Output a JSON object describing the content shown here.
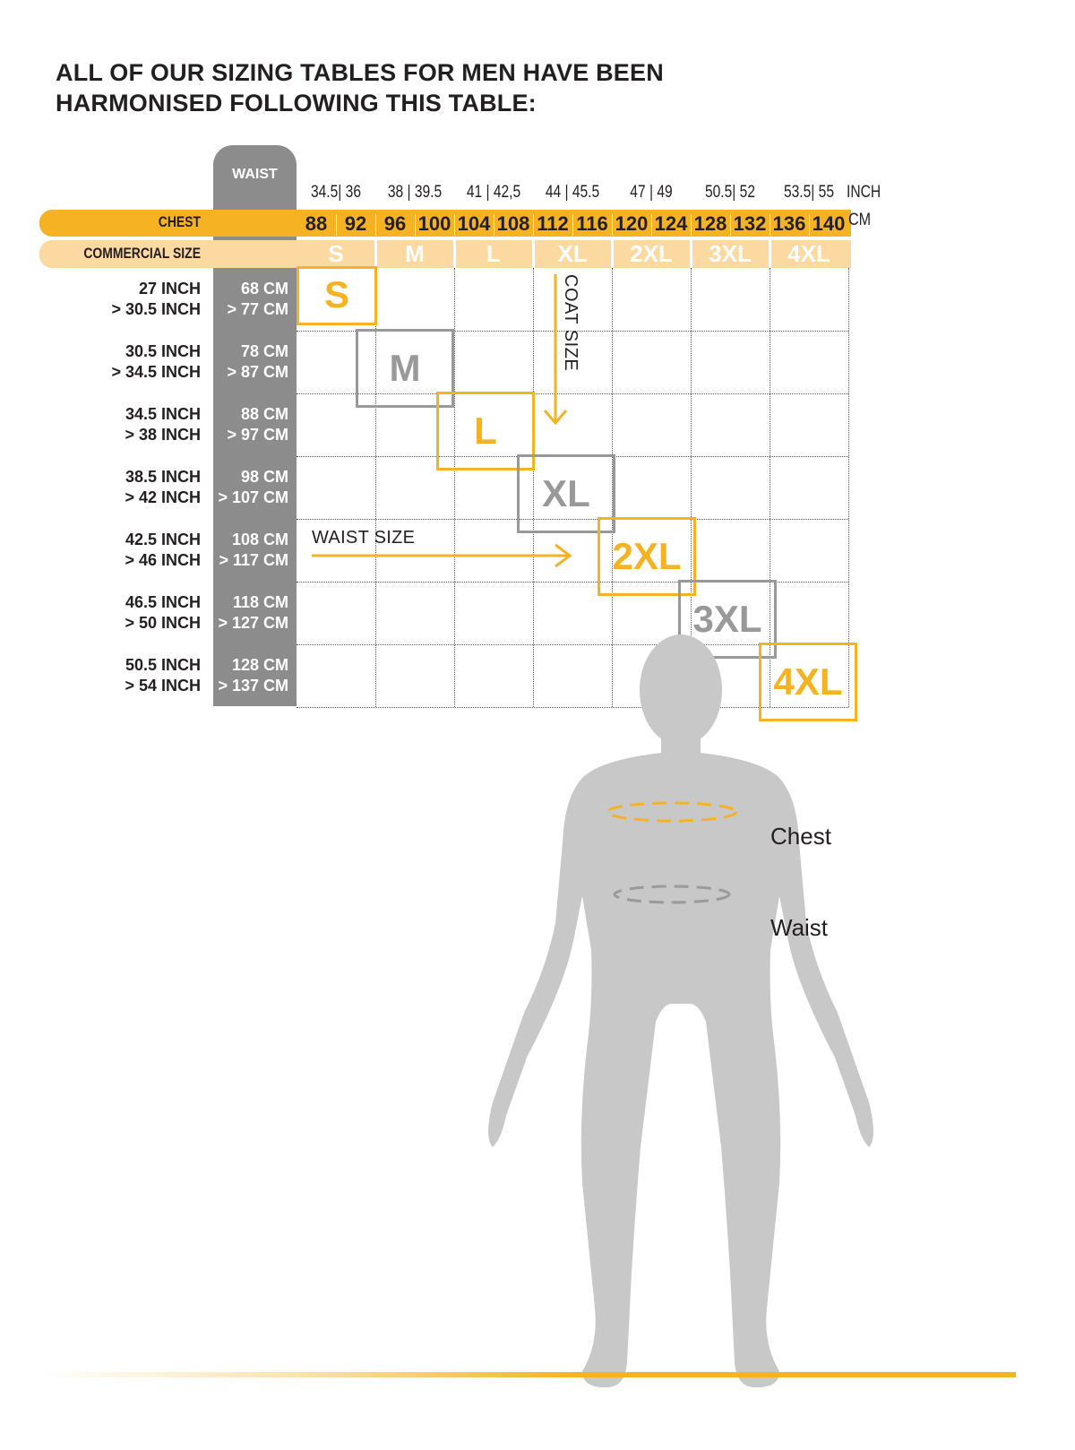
{
  "title_line1": "ALL OF OUR SIZING TABLES FOR MEN HAVE BEEN",
  "title_line2": "HARMONISED FOLLOWING THIS TABLE:",
  "waist_header": "WAIST",
  "chest_label": "CHEST",
  "commercial_label": "COMMERCIAL SIZE",
  "inch_unit": "INCH",
  "cm_unit": "CM",
  "inch_headers": [
    "34.5|  36",
    "38  | 39.5",
    "41  | 42,5",
    "44  | 45.5",
    "47  |  49",
    "50.5|  52",
    "53.5|  55"
  ],
  "chest_cm": [
    "88",
    "92",
    "96",
    "100",
    "104",
    "108",
    "112",
    "116",
    "120",
    "124",
    "128",
    "132",
    "136",
    "140"
  ],
  "commercial_sizes": [
    "S",
    "M",
    "L",
    "XL",
    "2XL",
    "3XL",
    "4XL"
  ],
  "rows": [
    {
      "inch1": "27 INCH",
      "inch2": "> 30.5 INCH",
      "cm1": "68 CM",
      "cm2": "> 77 CM"
    },
    {
      "inch1": "30.5 INCH",
      "inch2": "> 34.5 INCH",
      "cm1": "78 CM",
      "cm2": "> 87 CM"
    },
    {
      "inch1": "34.5 INCH",
      "inch2": "> 38 INCH",
      "cm1": "88 CM",
      "cm2": "> 97 CM"
    },
    {
      "inch1": "38.5 INCH",
      "inch2": "> 42 INCH",
      "cm1": "98 CM",
      "cm2": "> 107 CM"
    },
    {
      "inch1": "42.5 INCH",
      "inch2": "> 46 INCH",
      "cm1": "108 CM",
      "cm2": "> 117 CM"
    },
    {
      "inch1": "46.5 INCH",
      "inch2": "> 50 INCH",
      "cm1": "118 CM",
      "cm2": "> 127 CM"
    },
    {
      "inch1": "50.5 INCH",
      "inch2": "> 54 INCH",
      "cm1": "128 CM",
      "cm2": "> 137 CM"
    }
  ],
  "size_boxes": [
    "S",
    "M",
    "L",
    "XL",
    "2XL",
    "3XL",
    "4XL"
  ],
  "coat_size_label": "COAT SIZE",
  "waist_size_label": "WAIST SIZE",
  "chest_body_label": "Chest",
  "waist_body_label": "Waist",
  "colors": {
    "yellow": "#f5b324",
    "light_yellow": "#fbd9a1",
    "grey": "#8c8c8d",
    "box_grey": "#999999",
    "figure": "#c8c8c8"
  }
}
